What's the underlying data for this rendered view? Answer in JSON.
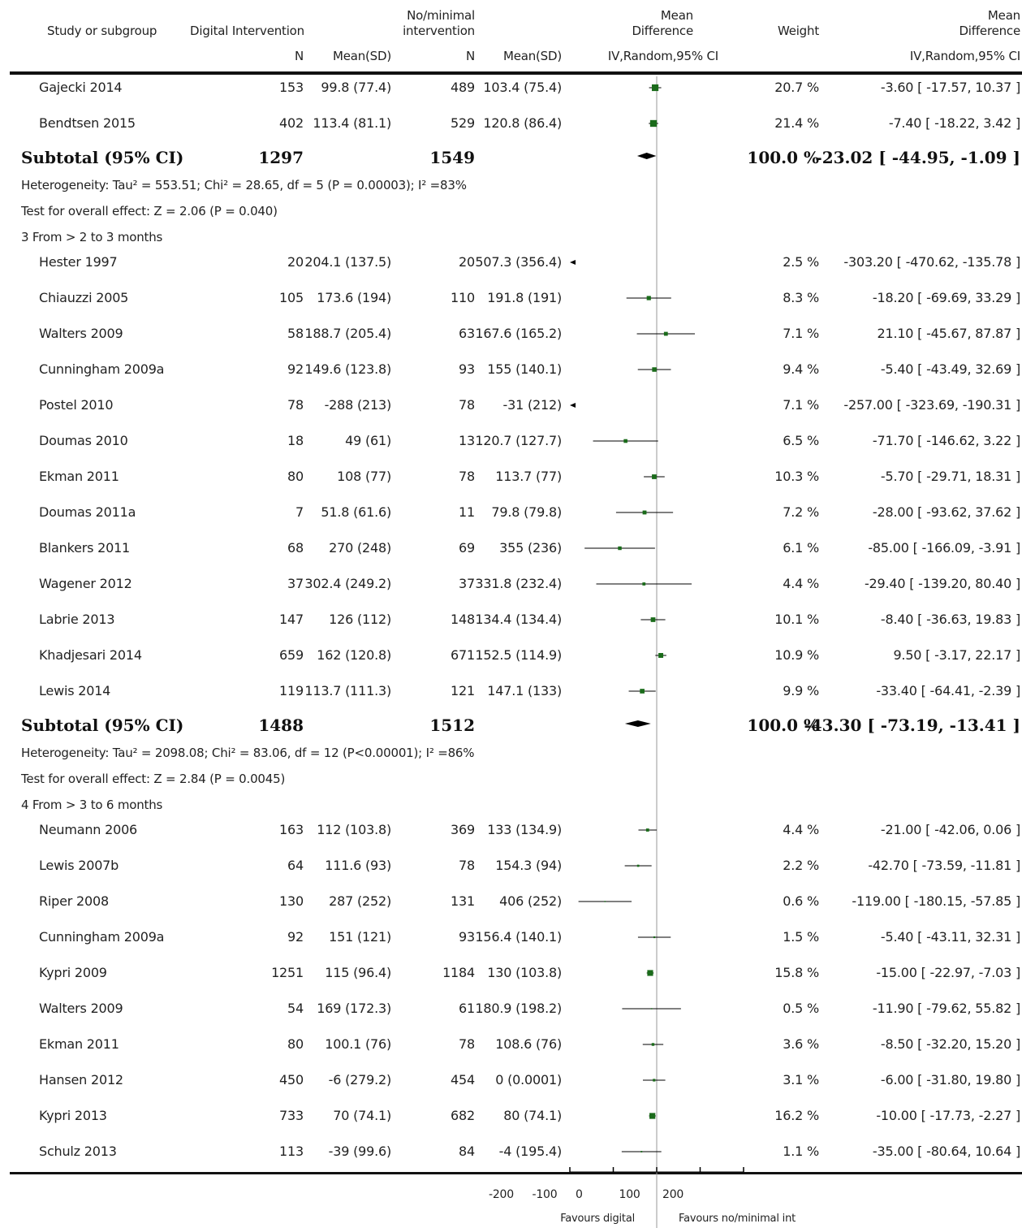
{
  "header": {
    "study": "Study or subgroup",
    "digital": "Digital Intervention",
    "nomin_line1": "No/minimal",
    "nomin_line2": "intervention",
    "md_line1": "Mean",
    "md_line2": "Difference",
    "weight": "Weight",
    "md2_line1": "Mean",
    "md2_line2": "Difference",
    "n1": "N",
    "mean1": "Mean(SD)",
    "n2": "N",
    "mean2": "Mean(SD)",
    "method": "IV,Random,95% CI",
    "method2": "IV,Random,95% CI"
  },
  "rows": [
    {
      "kind": "study",
      "name": "Gajecki 2014",
      "n1": "153",
      "m1": "99.8 (77.4)",
      "n2": "489",
      "m2": "103.4 (75.4)",
      "md": -3.6,
      "lo": -17.57,
      "hi": 10.37,
      "w": 20.7,
      "weight": "20.7 %",
      "ci": "-3.60 [ -17.57, 10.37 ]"
    },
    {
      "kind": "study",
      "name": "Bendtsen 2015",
      "n1": "402",
      "m1": "113.4 (81.1)",
      "n2": "529",
      "m2": "120.8 (86.4)",
      "md": -7.4,
      "lo": -18.22,
      "hi": 3.42,
      "w": 21.4,
      "weight": "21.4 %",
      "ci": "-7.40 [ -18.22, 3.42 ]"
    },
    {
      "kind": "subtotal",
      "label": "Subtotal (95% CI)",
      "n1": "1297",
      "n2": "1549",
      "md": -23.02,
      "lo": -44.95,
      "hi": -1.09,
      "weight": "100.0 %",
      "ci": "-23.02 [ -44.95, -1.09 ]"
    },
    {
      "kind": "note",
      "text": "Heterogeneity: Tau² = 553.51; Chi² = 28.65, df = 5 (P = 0.00003); I² =83%"
    },
    {
      "kind": "note",
      "text": "Test for overall effect: Z = 2.06 (P = 0.040)"
    },
    {
      "kind": "group",
      "text": "3 From > 2 to 3 months"
    },
    {
      "kind": "study",
      "name": "Hester 1997",
      "n1": "20",
      "m1": "204.1 (137.5)",
      "n2": "20",
      "m2": "507.3 (356.4)",
      "md": -303.2,
      "lo": -470.62,
      "hi": -135.78,
      "w": 2.5,
      "weight": "2.5 %",
      "ci": "-303.20 [ -470.62, -135.78 ]"
    },
    {
      "kind": "study",
      "name": "Chiauzzi 2005",
      "n1": "105",
      "m1": "173.6 (194)",
      "n2": "110",
      "m2": "191.8 (191)",
      "md": -18.2,
      "lo": -69.69,
      "hi": 33.29,
      "w": 8.3,
      "weight": "8.3 %",
      "ci": "-18.20 [ -69.69, 33.29 ]"
    },
    {
      "kind": "study",
      "name": "Walters 2009",
      "n1": "58",
      "m1": "188.7 (205.4)",
      "n2": "63",
      "m2": "167.6 (165.2)",
      "md": 21.1,
      "lo": -45.67,
      "hi": 87.87,
      "w": 7.1,
      "weight": "7.1 %",
      "ci": "21.10 [ -45.67, 87.87 ]"
    },
    {
      "kind": "study",
      "name": "Cunningham 2009a",
      "n1": "92",
      "m1": "149.6 (123.8)",
      "n2": "93",
      "m2": "155 (140.1)",
      "md": -5.4,
      "lo": -43.49,
      "hi": 32.69,
      "w": 9.4,
      "weight": "9.4 %",
      "ci": "-5.40 [ -43.49, 32.69 ]"
    },
    {
      "kind": "study",
      "name": "Postel 2010",
      "n1": "78",
      "m1": "-288 (213)",
      "n2": "78",
      "m2": "-31 (212)",
      "md": -257.0,
      "lo": -323.69,
      "hi": -190.31,
      "w": 7.1,
      "weight": "7.1 %",
      "ci": "-257.00 [ -323.69, -190.31 ]"
    },
    {
      "kind": "study",
      "name": "Doumas 2010",
      "n1": "18",
      "m1": "49 (61)",
      "n2": "13",
      "m2": "120.7 (127.7)",
      "md": -71.7,
      "lo": -146.62,
      "hi": 3.22,
      "w": 6.5,
      "weight": "6.5 %",
      "ci": "-71.70 [ -146.62, 3.22 ]"
    },
    {
      "kind": "study",
      "name": "Ekman 2011",
      "n1": "80",
      "m1": "108 (77)",
      "n2": "78",
      "m2": "113.7 (77)",
      "md": -5.7,
      "lo": -29.71,
      "hi": 18.31,
      "w": 10.3,
      "weight": "10.3 %",
      "ci": "-5.70 [ -29.71, 18.31 ]"
    },
    {
      "kind": "study",
      "name": "Doumas 2011a",
      "n1": "7",
      "m1": "51.8 (61.6)",
      "n2": "11",
      "m2": "79.8 (79.8)",
      "md": -28.0,
      "lo": -93.62,
      "hi": 37.62,
      "w": 7.2,
      "weight": "7.2 %",
      "ci": "-28.00 [ -93.62, 37.62 ]"
    },
    {
      "kind": "study",
      "name": "Blankers 2011",
      "n1": "68",
      "m1": "270 (248)",
      "n2": "69",
      "m2": "355 (236)",
      "md": -85.0,
      "lo": -166.09,
      "hi": -3.91,
      "w": 6.1,
      "weight": "6.1 %",
      "ci": "-85.00 [ -166.09, -3.91 ]"
    },
    {
      "kind": "study",
      "name": "Wagener 2012",
      "n1": "37",
      "m1": "302.4 (249.2)",
      "n2": "37",
      "m2": "331.8 (232.4)",
      "md": -29.4,
      "lo": -139.2,
      "hi": 80.4,
      "w": 4.4,
      "weight": "4.4 %",
      "ci": "-29.40 [ -139.20, 80.40 ]"
    },
    {
      "kind": "study",
      "name": "Labrie 2013",
      "n1": "147",
      "m1": "126 (112)",
      "n2": "148",
      "m2": "134.4 (134.4)",
      "md": -8.4,
      "lo": -36.63,
      "hi": 19.83,
      "w": 10.1,
      "weight": "10.1 %",
      "ci": "-8.40 [ -36.63, 19.83 ]"
    },
    {
      "kind": "study",
      "name": "Khadjesari 2014",
      "n1": "659",
      "m1": "162 (120.8)",
      "n2": "671",
      "m2": "152.5 (114.9)",
      "md": 9.5,
      "lo": -3.17,
      "hi": 22.17,
      "w": 10.9,
      "weight": "10.9 %",
      "ci": "9.50 [ -3.17, 22.17 ]"
    },
    {
      "kind": "study",
      "name": "Lewis 2014",
      "n1": "119",
      "m1": "113.7 (111.3)",
      "n2": "121",
      "m2": "147.1 (133)",
      "md": -33.4,
      "lo": -64.41,
      "hi": -2.39,
      "w": 9.9,
      "weight": "9.9 %",
      "ci": "-33.40 [ -64.41, -2.39 ]"
    },
    {
      "kind": "subtotal",
      "label": "Subtotal (95% CI)",
      "n1": "1488",
      "n2": "1512",
      "md": -43.3,
      "lo": -73.19,
      "hi": -13.41,
      "weight": "100.0 %",
      "ci": "-43.30 [ -73.19, -13.41 ]"
    },
    {
      "kind": "note",
      "text": "Heterogeneity: Tau² = 2098.08; Chi² = 83.06, df = 12 (P<0.00001); I² =86%"
    },
    {
      "kind": "note",
      "text": "Test for overall effect: Z = 2.84 (P = 0.0045)"
    },
    {
      "kind": "group",
      "text": "4 From > 3 to 6 months"
    },
    {
      "kind": "study",
      "name": "Neumann 2006",
      "n1": "163",
      "m1": "112 (103.8)",
      "n2": "369",
      "m2": "133 (134.9)",
      "md": -21.0,
      "lo": -42.06,
      "hi": 0.06,
      "w": 4.4,
      "weight": "4.4 %",
      "ci": "-21.00 [ -42.06, 0.06 ]"
    },
    {
      "kind": "study",
      "name": "Lewis 2007b",
      "n1": "64",
      "m1": "111.6 (93)",
      "n2": "78",
      "m2": "154.3 (94)",
      "md": -42.7,
      "lo": -73.59,
      "hi": -11.81,
      "w": 2.2,
      "weight": "2.2 %",
      "ci": "-42.70 [ -73.59, -11.81 ]"
    },
    {
      "kind": "study",
      "name": "Riper 2008",
      "n1": "130",
      "m1": "287 (252)",
      "n2": "131",
      "m2": "406 (252)",
      "md": -119.0,
      "lo": -180.15,
      "hi": -57.85,
      "w": 0.6,
      "weight": "0.6 %",
      "ci": "-119.00 [ -180.15, -57.85 ]"
    },
    {
      "kind": "study",
      "name": "Cunningham 2009a",
      "n1": "92",
      "m1": "151 (121)",
      "n2": "93",
      "m2": "156.4 (140.1)",
      "md": -5.4,
      "lo": -43.11,
      "hi": 32.31,
      "w": 1.5,
      "weight": "1.5 %",
      "ci": "-5.40 [ -43.11, 32.31 ]"
    },
    {
      "kind": "study",
      "name": "Kypri 2009",
      "n1": "1251",
      "m1": "115 (96.4)",
      "n2": "1184",
      "m2": "130 (103.8)",
      "md": -15.0,
      "lo": -22.97,
      "hi": -7.03,
      "w": 15.8,
      "weight": "15.8 %",
      "ci": "-15.00 [ -22.97, -7.03 ]"
    },
    {
      "kind": "study",
      "name": "Walters 2009",
      "n1": "54",
      "m1": "169 (172.3)",
      "n2": "61",
      "m2": "180.9 (198.2)",
      "md": -11.9,
      "lo": -79.62,
      "hi": 55.82,
      "w": 0.5,
      "weight": "0.5 %",
      "ci": "-11.90 [ -79.62, 55.82 ]"
    },
    {
      "kind": "study",
      "name": "Ekman 2011",
      "n1": "80",
      "m1": "100.1 (76)",
      "n2": "78",
      "m2": "108.6 (76)",
      "md": -8.5,
      "lo": -32.2,
      "hi": 15.2,
      "w": 3.6,
      "weight": "3.6 %",
      "ci": "-8.50 [ -32.20, 15.20 ]"
    },
    {
      "kind": "study",
      "name": "Hansen 2012",
      "n1": "450",
      "m1": "-6 (279.2)",
      "n2": "454",
      "m2": "0 (0.0001)",
      "md": -6.0,
      "lo": -31.8,
      "hi": 19.8,
      "w": 3.1,
      "weight": "3.1 %",
      "ci": "-6.00 [ -31.80, 19.80 ]"
    },
    {
      "kind": "study",
      "name": "Kypri 2013",
      "n1": "733",
      "m1": "70 (74.1)",
      "n2": "682",
      "m2": "80 (74.1)",
      "md": -10.0,
      "lo": -17.73,
      "hi": -2.27,
      "w": 16.2,
      "weight": "16.2 %",
      "ci": "-10.00 [ -17.73, -2.27 ]"
    },
    {
      "kind": "study",
      "name": "Schulz 2013",
      "n1": "113",
      "m1": "-39 (99.6)",
      "n2": "84",
      "m2": "-4 (195.4)",
      "md": -35.0,
      "lo": -80.64,
      "hi": 10.64,
      "w": 1.1,
      "weight": "1.1 %",
      "ci": "-35.00 [ -80.64, 10.64 ]"
    }
  ],
  "chart_data": {
    "type": "forest",
    "measure": "Mean Difference, IV, Random, 95% CI",
    "xlim": [
      -200,
      200
    ],
    "ticks": [
      -200,
      -100,
      0,
      100,
      200
    ],
    "tick_labels": [
      "-200",
      "-100",
      "0",
      "100",
      "200"
    ],
    "favours_left": "Favours digital",
    "favours_right": "Favours no/minimal int",
    "marker_color": "#1a6b1a",
    "diamond_color": "#000000"
  }
}
